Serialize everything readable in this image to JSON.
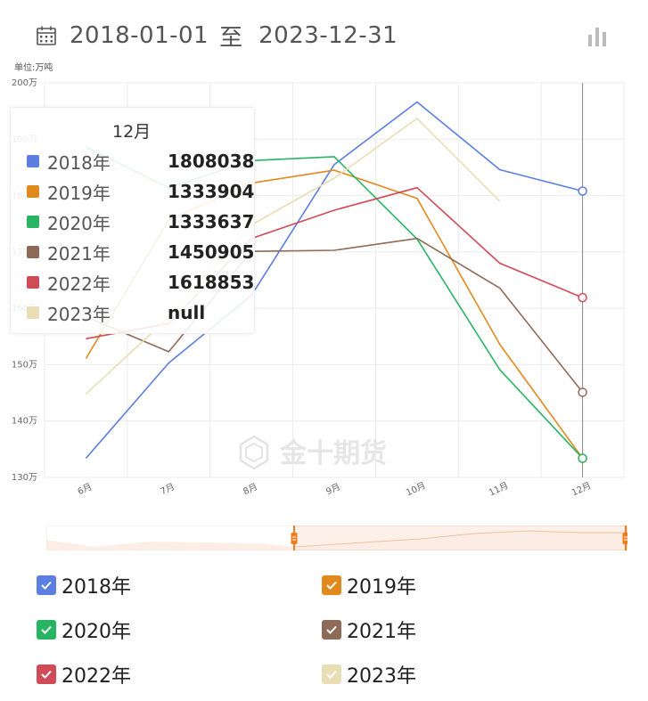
{
  "header": {
    "start_date": "2018-01-01",
    "separator": "至",
    "end_date": "2023-12-31",
    "calendar_icon": "calendar-icon",
    "chart_toggle_icon": "bar-chart-icon"
  },
  "unit_label": "单位:万吨",
  "watermark": "金十期货",
  "tooltip": {
    "title": "12月",
    "rows": [
      {
        "name": "2018年",
        "value": "1808038",
        "color": "#5b7fe0"
      },
      {
        "name": "2019年",
        "value": "1333904",
        "color": "#e08a1e"
      },
      {
        "name": "2020年",
        "value": "1333637",
        "color": "#28b463"
      },
      {
        "name": "2021年",
        "value": "1450905",
        "color": "#8e6b58"
      },
      {
        "name": "2022年",
        "value": "1618853",
        "color": "#cf4b56"
      },
      {
        "name": "2023年",
        "value": "null",
        "color": "#e8ddb5"
      }
    ]
  },
  "legend": [
    {
      "name": "2018年",
      "color": "#5b7fe0"
    },
    {
      "name": "2019年",
      "color": "#e08a1e"
    },
    {
      "name": "2020年",
      "color": "#28b463"
    },
    {
      "name": "2021年",
      "color": "#8e6b58"
    },
    {
      "name": "2022年",
      "color": "#cf4b56"
    },
    {
      "name": "2023年",
      "color": "#e8ddb5"
    }
  ],
  "chart_data": {
    "type": "line",
    "categories": [
      "6月",
      "7月",
      "8月",
      "9月",
      "10月",
      "11月",
      "12月"
    ],
    "y_ticks": [
      "130万",
      "140万",
      "150万",
      "160万",
      "170万",
      "180万",
      "190万",
      "200万"
    ],
    "ylim": [
      130,
      200
    ],
    "unit": "万吨",
    "highlight_category": "12月",
    "grid": true,
    "series": [
      {
        "name": "2018年",
        "color": "#5b7fe0",
        "values": [
          133.4,
          150.3,
          162.3,
          185.5,
          196.6,
          184.6,
          180.8
        ]
      },
      {
        "name": "2019年",
        "color": "#e08a1e",
        "values": [
          151.1,
          175.7,
          182.2,
          184.5,
          179.5,
          153.6,
          133.4
        ]
      },
      {
        "name": "2020年",
        "color": "#28b463",
        "values": [
          188.6,
          181.4,
          186.2,
          186.9,
          172.3,
          149.1,
          133.4
        ]
      },
      {
        "name": "2021年",
        "color": "#8e6b58",
        "values": [
          158.5,
          152.3,
          170.1,
          170.3,
          172.4,
          163.6,
          145.1
        ]
      },
      {
        "name": "2022年",
        "color": "#cf4b56",
        "values": [
          154.6,
          157.3,
          172.4,
          177.4,
          181.4,
          168.0,
          161.9
        ]
      },
      {
        "name": "2023年",
        "color": "#e8ddb5",
        "values": [
          144.8,
          158.4,
          174.8,
          183.1,
          193.7,
          179.0,
          null
        ]
      }
    ]
  }
}
